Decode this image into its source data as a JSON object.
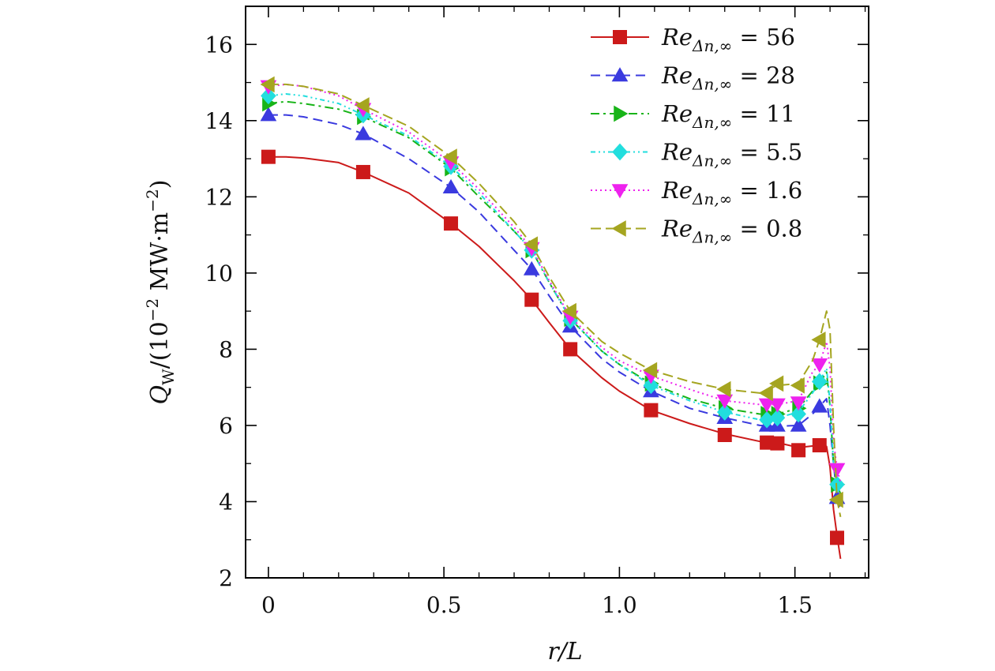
{
  "chart_data": {
    "type": "line",
    "title": "",
    "xlabel": "r/L",
    "ylabel": "Q_W/(10^-2 MW·m^-2)",
    "ylabel_parts": {
      "q": "Q",
      "sub": "W",
      "mid": "/(10",
      "exp1": "−2",
      "unit": " MW·m",
      "exp2": "−2",
      "close": ")"
    },
    "xlim": [
      -0.065,
      1.71
    ],
    "ylim": [
      2,
      17
    ],
    "xticks": [
      0,
      0.5,
      1.0,
      1.5
    ],
    "xtick_labels": [
      "0",
      "0.5",
      "1.0",
      "1.5"
    ],
    "yticks": [
      2,
      4,
      6,
      8,
      10,
      12,
      14,
      16
    ],
    "ytick_labels": [
      "2",
      "4",
      "6",
      "8",
      "10",
      "12",
      "14",
      "16"
    ],
    "legend_position": "top-right",
    "marker_x": [
      0,
      0.27,
      0.52,
      0.75,
      0.86,
      1.09,
      1.3,
      1.42,
      1.45,
      1.51,
      1.57,
      1.62
    ],
    "series": [
      {
        "name": "Re_{Δn,∞} = 56",
        "label_value": "56",
        "color": "#cc1a1a",
        "marker": "square",
        "dash": "",
        "x": [
          0,
          0.05,
          0.1,
          0.2,
          0.27,
          0.4,
          0.52,
          0.6,
          0.7,
          0.75,
          0.8,
          0.86,
          0.95,
          1.0,
          1.09,
          1.2,
          1.3,
          1.4,
          1.45,
          1.51,
          1.57,
          1.59,
          1.6,
          1.61,
          1.62,
          1.63
        ],
        "y": [
          13.05,
          13.05,
          13.02,
          12.9,
          12.65,
          12.1,
          11.3,
          10.7,
          9.8,
          9.3,
          8.7,
          8.0,
          7.25,
          6.9,
          6.4,
          6.05,
          5.78,
          5.58,
          5.55,
          5.42,
          5.48,
          5.45,
          4.9,
          3.8,
          3.1,
          2.5
        ],
        "markers": [
          13.05,
          12.65,
          11.3,
          9.3,
          8.0,
          6.4,
          5.75,
          5.55,
          5.53,
          5.35,
          5.48,
          3.05
        ]
      },
      {
        "name": "Re_{Δn,∞} = 28",
        "label_value": "28",
        "color": "#3a3adf",
        "marker": "triangle-up",
        "dash": "12,7",
        "x": [
          0,
          0.05,
          0.1,
          0.2,
          0.27,
          0.4,
          0.52,
          0.6,
          0.7,
          0.75,
          0.8,
          0.86,
          0.95,
          1.0,
          1.09,
          1.2,
          1.3,
          1.4,
          1.45,
          1.51,
          1.55,
          1.57,
          1.59,
          1.6,
          1.61,
          1.62,
          1.63
        ],
        "y": [
          14.15,
          14.15,
          14.1,
          13.9,
          13.65,
          13.0,
          12.25,
          11.6,
          10.6,
          10.1,
          9.4,
          8.6,
          7.75,
          7.4,
          6.9,
          6.45,
          6.2,
          6.0,
          5.98,
          6.0,
          6.3,
          6.5,
          6.7,
          6.0,
          5.0,
          4.1,
          3.8
        ],
        "markers": [
          14.15,
          13.65,
          12.25,
          10.1,
          8.6,
          6.9,
          6.2,
          6.0,
          6.0,
          6.0,
          6.5,
          4.1
        ]
      },
      {
        "name": "Re_{Δn,∞} = 11",
        "label_value": "11",
        "color": "#18b418",
        "marker": "triangle-right",
        "dash": "11,5,3,5",
        "x": [
          0,
          0.05,
          0.1,
          0.2,
          0.27,
          0.4,
          0.52,
          0.6,
          0.7,
          0.75,
          0.8,
          0.86,
          0.95,
          1.0,
          1.09,
          1.2,
          1.3,
          1.4,
          1.45,
          1.51,
          1.55,
          1.57,
          1.59,
          1.6,
          1.61,
          1.62,
          1.63
        ],
        "y": [
          14.45,
          14.5,
          14.45,
          14.3,
          14.1,
          13.55,
          12.75,
          12.0,
          11.1,
          10.6,
          9.75,
          8.8,
          7.95,
          7.6,
          7.1,
          6.7,
          6.45,
          6.3,
          6.3,
          6.45,
          6.9,
          7.1,
          7.4,
          6.5,
          5.0,
          4.45,
          4.2
        ],
        "markers": [
          14.45,
          14.1,
          12.75,
          10.6,
          8.8,
          7.1,
          6.45,
          6.3,
          6.3,
          6.45,
          7.1,
          4.45
        ]
      },
      {
        "name": "Re_{Δn,∞} = 5.5",
        "label_value": "5.5",
        "color": "#22dede",
        "marker": "diamond",
        "dash": "6,4,2,4,2,4",
        "x": [
          0,
          0.05,
          0.1,
          0.2,
          0.27,
          0.4,
          0.52,
          0.6,
          0.7,
          0.75,
          0.8,
          0.86,
          0.95,
          1.0,
          1.09,
          1.2,
          1.3,
          1.4,
          1.45,
          1.51,
          1.55,
          1.57,
          1.59,
          1.6,
          1.61,
          1.62,
          1.63
        ],
        "y": [
          14.65,
          14.7,
          14.65,
          14.45,
          14.15,
          13.6,
          12.8,
          12.1,
          11.1,
          10.6,
          9.75,
          8.8,
          7.95,
          7.6,
          7.05,
          6.65,
          6.35,
          6.15,
          6.2,
          6.35,
          6.85,
          7.15,
          7.5,
          6.6,
          5.0,
          4.45,
          4.2
        ],
        "markers": [
          14.65,
          14.15,
          12.8,
          10.6,
          8.75,
          7.05,
          6.35,
          6.15,
          6.2,
          6.3,
          7.15,
          4.45
        ]
      },
      {
        "name": "Re_{Δn,∞} = 1.6",
        "label_value": "1.6",
        "color": "#ee22ee",
        "marker": "triangle-down",
        "dash": "2,4",
        "x": [
          0,
          0.05,
          0.1,
          0.2,
          0.27,
          0.4,
          0.52,
          0.6,
          0.7,
          0.75,
          0.8,
          0.86,
          0.95,
          1.0,
          1.09,
          1.2,
          1.3,
          1.4,
          1.45,
          1.51,
          1.55,
          1.57,
          1.59,
          1.6,
          1.61,
          1.62,
          1.63
        ],
        "y": [
          14.9,
          14.95,
          14.9,
          14.65,
          14.3,
          13.7,
          12.9,
          12.2,
          11.2,
          10.65,
          9.8,
          8.85,
          8.05,
          7.7,
          7.3,
          6.95,
          6.65,
          6.55,
          6.55,
          6.65,
          7.4,
          7.6,
          8.2,
          7.5,
          5.6,
          4.85,
          4.5
        ],
        "markers": [
          14.9,
          14.3,
          12.9,
          10.65,
          8.85,
          7.3,
          6.65,
          6.55,
          6.55,
          6.6,
          7.6,
          4.85
        ]
      },
      {
        "name": "Re_{Δn,∞} = 0.8",
        "label_value": "0.8",
        "color": "#a5a520",
        "marker": "triangle-left",
        "dash": "13,6",
        "x": [
          0,
          0.05,
          0.1,
          0.2,
          0.27,
          0.4,
          0.52,
          0.6,
          0.7,
          0.75,
          0.8,
          0.86,
          0.95,
          1.0,
          1.09,
          1.2,
          1.3,
          1.4,
          1.45,
          1.51,
          1.55,
          1.57,
          1.59,
          1.6,
          1.61,
          1.62,
          1.63
        ],
        "y": [
          14.95,
          14.95,
          14.9,
          14.7,
          14.4,
          13.85,
          13.05,
          12.35,
          11.35,
          10.75,
          9.9,
          9.0,
          8.2,
          7.9,
          7.45,
          7.15,
          6.95,
          6.85,
          7.05,
          7.1,
          7.7,
          8.25,
          9.0,
          8.5,
          6.0,
          4.05,
          3.6
        ],
        "markers": [
          14.95,
          14.4,
          13.05,
          10.75,
          9.0,
          7.45,
          6.95,
          6.85,
          7.1,
          7.05,
          8.25,
          4.05
        ]
      }
    ]
  }
}
